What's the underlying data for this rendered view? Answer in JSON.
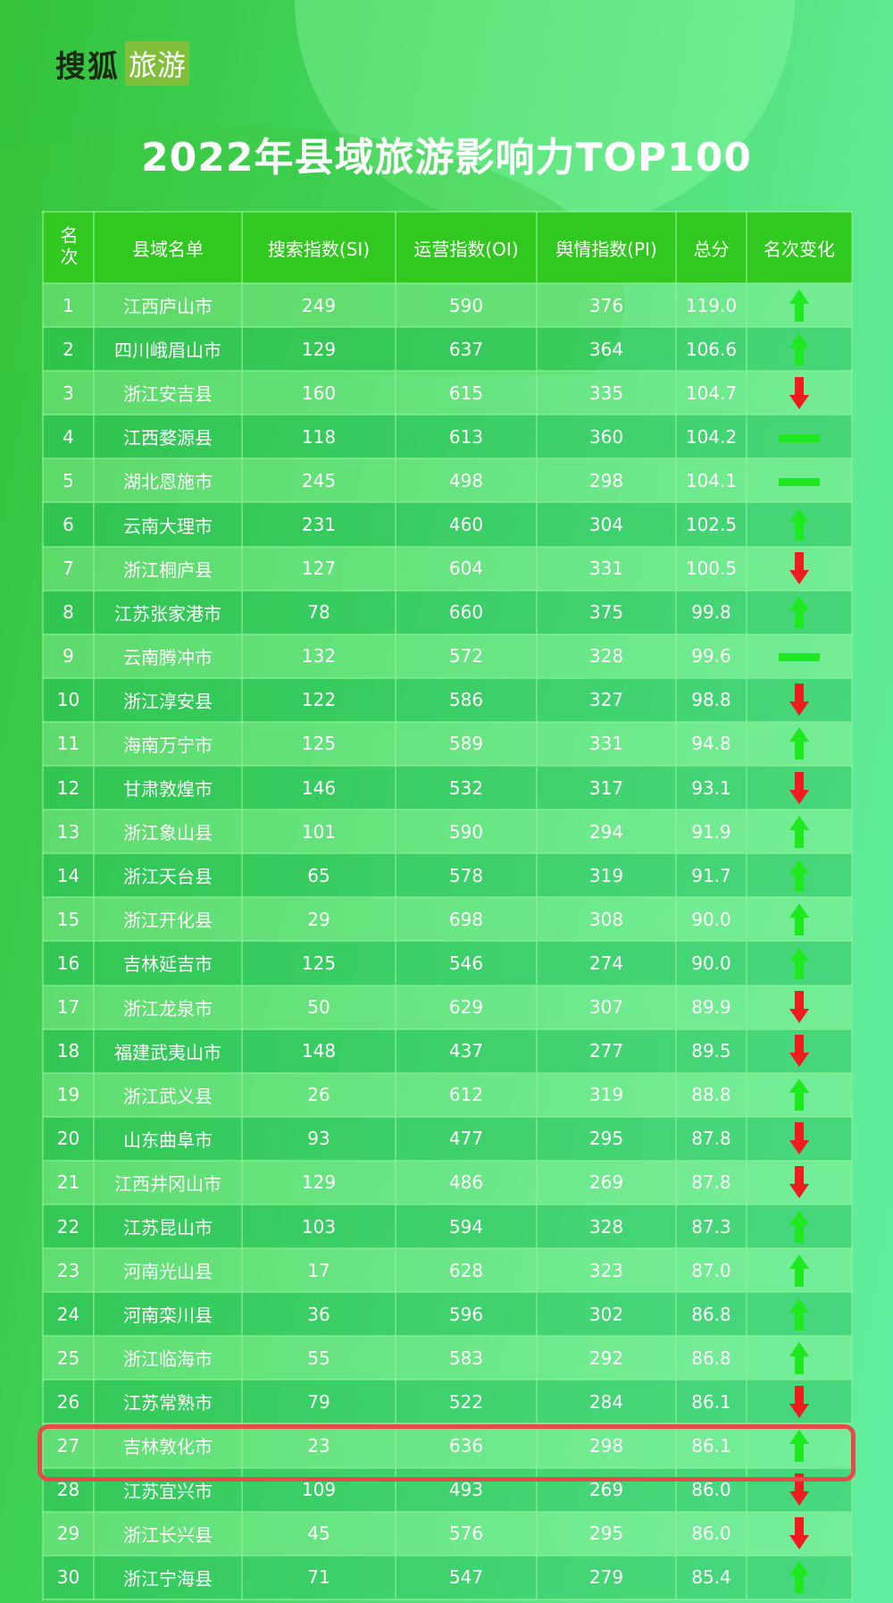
{
  "logo": {
    "brand": "搜狐",
    "product": "旅游"
  },
  "title": "2022年县域旅游影响力TOP100",
  "colors": {
    "up": "#1ee81e",
    "down": "#ee1c1c",
    "same": "#1ee81e",
    "highlight": "#e84a4a"
  },
  "table": {
    "headers": [
      "名次",
      "县域名单",
      "搜索指数(SI)",
      "运营指数(OI)",
      "舆情指数(PI)",
      "总分",
      "名次变化"
    ],
    "rows": [
      [
        "1",
        "江西庐山市",
        "249",
        "590",
        "376",
        "119.0",
        "up"
      ],
      [
        "2",
        "四川峨眉山市",
        "129",
        "637",
        "364",
        "106.6",
        "up"
      ],
      [
        "3",
        "浙江安吉县",
        "160",
        "615",
        "335",
        "104.7",
        "down"
      ],
      [
        "4",
        "江西婺源县",
        "118",
        "613",
        "360",
        "104.2",
        "same"
      ],
      [
        "5",
        "湖北恩施市",
        "245",
        "498",
        "298",
        "104.1",
        "same"
      ],
      [
        "6",
        "云南大理市",
        "231",
        "460",
        "304",
        "102.5",
        "up"
      ],
      [
        "7",
        "浙江桐庐县",
        "127",
        "604",
        "331",
        "100.5",
        "down"
      ],
      [
        "8",
        "江苏张家港市",
        "78",
        "660",
        "375",
        "99.8",
        "up"
      ],
      [
        "9",
        "云南腾冲市",
        "132",
        "572",
        "328",
        "99.6",
        "same"
      ],
      [
        "10",
        "浙江淳安县",
        "122",
        "586",
        "327",
        "98.8",
        "down"
      ],
      [
        "11",
        "海南万宁市",
        "125",
        "589",
        "331",
        "94.8",
        "up"
      ],
      [
        "12",
        "甘肃敦煌市",
        "146",
        "532",
        "317",
        "93.1",
        "down"
      ],
      [
        "13",
        "浙江象山县",
        "101",
        "590",
        "294",
        "91.9",
        "up"
      ],
      [
        "14",
        "浙江天台县",
        "65",
        "578",
        "319",
        "91.7",
        "up"
      ],
      [
        "15",
        "浙江开化县",
        "29",
        "698",
        "308",
        "90.0",
        "up"
      ],
      [
        "16",
        "吉林延吉市",
        "125",
        "546",
        "274",
        "90.0",
        "up"
      ],
      [
        "17",
        "浙江龙泉市",
        "50",
        "629",
        "307",
        "89.9",
        "down"
      ],
      [
        "18",
        "福建武夷山市",
        "148",
        "437",
        "277",
        "89.5",
        "down"
      ],
      [
        "19",
        "浙江武义县",
        "26",
        "612",
        "319",
        "88.8",
        "up"
      ],
      [
        "20",
        "山东曲阜市",
        "93",
        "477",
        "295",
        "87.8",
        "down"
      ],
      [
        "21",
        "江西井冈山市",
        "129",
        "486",
        "269",
        "87.8",
        "down"
      ],
      [
        "22",
        "江苏昆山市",
        "103",
        "594",
        "328",
        "87.3",
        "up"
      ],
      [
        "23",
        "河南光山县",
        "17",
        "628",
        "323",
        "87.0",
        "up"
      ],
      [
        "24",
        "河南栾川县",
        "36",
        "596",
        "302",
        "86.8",
        "up"
      ],
      [
        "25",
        "浙江临海市",
        "55",
        "583",
        "292",
        "86.8",
        "up"
      ],
      [
        "26",
        "江苏常熟市",
        "79",
        "522",
        "284",
        "86.1",
        "down"
      ],
      [
        "27",
        "吉林敦化市",
        "23",
        "636",
        "298",
        "86.1",
        "up"
      ],
      [
        "28",
        "江苏宜兴市",
        "109",
        "493",
        "269",
        "86.0",
        "down"
      ],
      [
        "29",
        "浙江长兴县",
        "45",
        "576",
        "295",
        "86.0",
        "down"
      ],
      [
        "30",
        "浙江宁海县",
        "71",
        "547",
        "279",
        "85.4",
        "up"
      ]
    ],
    "highlighted_rank": "27"
  }
}
